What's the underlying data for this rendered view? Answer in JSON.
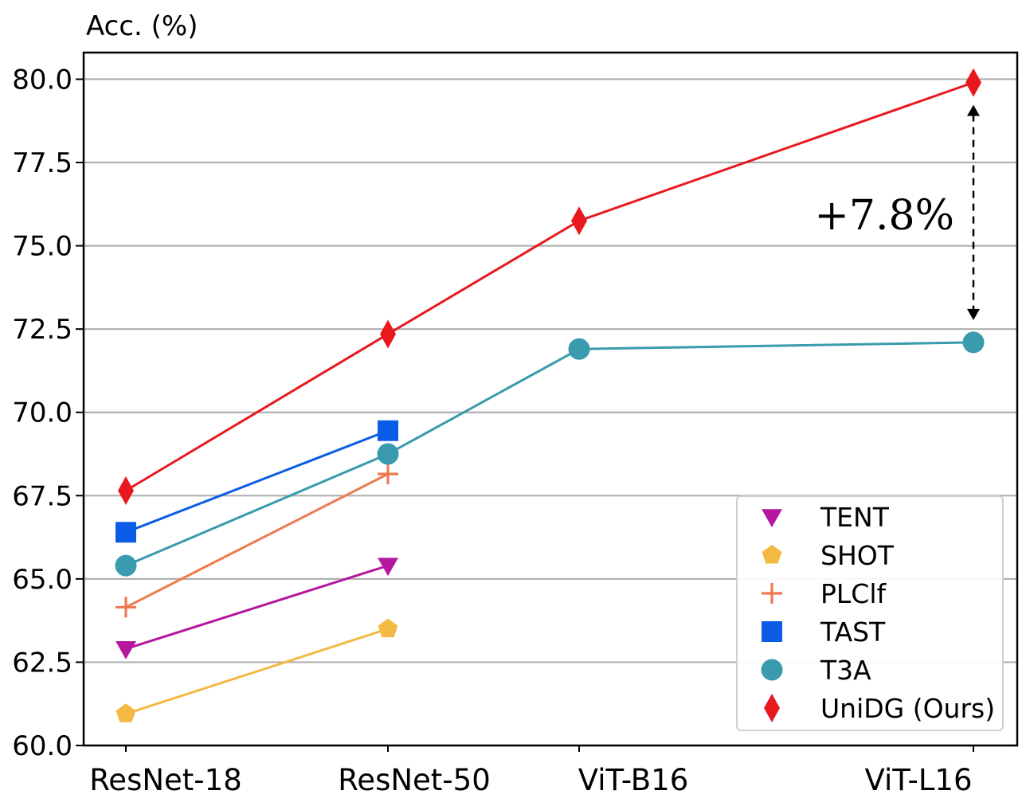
{
  "chart_data": {
    "type": "line",
    "title": "",
    "ylabel": "Acc. (%)",
    "xlabel": "",
    "categories": [
      "ResNet-18",
      "ResNet-50",
      "ViT-B16",
      "ViT-L16"
    ],
    "ylim": [
      60.0,
      80.8
    ],
    "yticks": [
      "60.0",
      "62.5",
      "65.0",
      "67.5",
      "70.0",
      "72.5",
      "75.0",
      "77.5",
      "80.0"
    ],
    "grid": "horizontal",
    "legend_position": "lower-right",
    "series": [
      {
        "name": "TENT",
        "color": "#b5179e",
        "marker": "triangle-down",
        "values": [
          62.9,
          65.4,
          null,
          null
        ]
      },
      {
        "name": "SHOT",
        "color": "#f4b942",
        "marker": "pentagon",
        "values": [
          60.95,
          63.5,
          null,
          null
        ]
      },
      {
        "name": "PLClf",
        "color": "#f07a50",
        "marker": "plus",
        "values": [
          64.15,
          68.15,
          null,
          null
        ]
      },
      {
        "name": "TAST",
        "color": "#0a5ce6",
        "marker": "square",
        "values": [
          66.4,
          69.45,
          null,
          null
        ]
      },
      {
        "name": "T3A",
        "color": "#3a9aae",
        "marker": "circle",
        "values": [
          65.4,
          68.75,
          71.9,
          72.1
        ]
      },
      {
        "name": "UniDG (Ours)",
        "color": "#e8191e",
        "marker": "diamond",
        "values": [
          67.65,
          72.35,
          75.75,
          79.9
        ]
      }
    ],
    "annotation": {
      "text": "+7.8%",
      "from_value": 72.1,
      "to_value": 79.9,
      "category": "ViT-L16"
    }
  }
}
